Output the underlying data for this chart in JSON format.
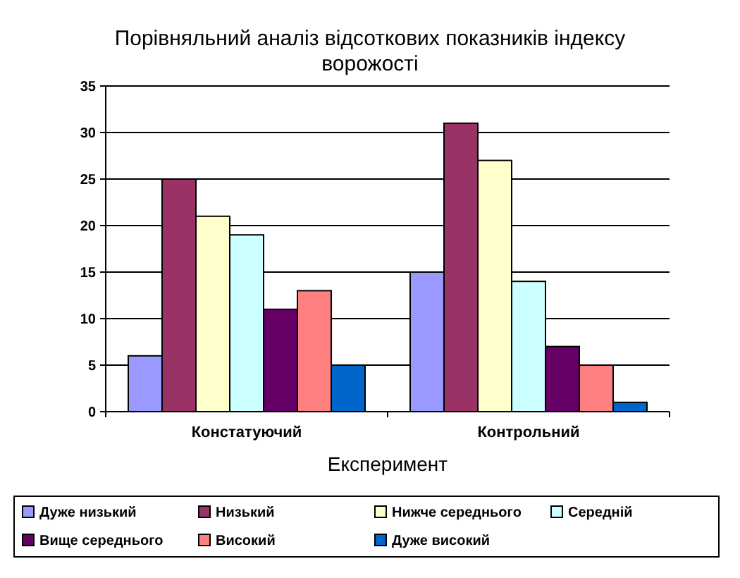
{
  "chart_data": {
    "type": "bar",
    "title": "Порівняльний аналіз відсоткових показників індексу ворожості",
    "xlabel": "Експеримент",
    "categories": [
      "Констатуючий",
      "Контрольний"
    ],
    "series": [
      {
        "name": "Дуже низький",
        "color": "#9999ff",
        "values": [
          6,
          15
        ]
      },
      {
        "name": "Низький",
        "color": "#993366",
        "values": [
          25,
          31
        ]
      },
      {
        "name": "Нижче середнього",
        "color": "#ffffcc",
        "values": [
          21,
          27
        ]
      },
      {
        "name": "Середній",
        "color": "#ccffff",
        "values": [
          19,
          14
        ]
      },
      {
        "name": "Вище середнього",
        "color": "#660066",
        "values": [
          11,
          7
        ]
      },
      {
        "name": "Високий",
        "color": "#ff8080",
        "values": [
          13,
          5
        ]
      },
      {
        "name": "Дуже високий",
        "color": "#0066cc",
        "values": [
          5,
          1
        ]
      }
    ],
    "ylim": [
      0,
      35
    ],
    "yticks": [
      0,
      5,
      10,
      15,
      20,
      25,
      30,
      35
    ],
    "grid": "y",
    "legend": "bottom"
  }
}
